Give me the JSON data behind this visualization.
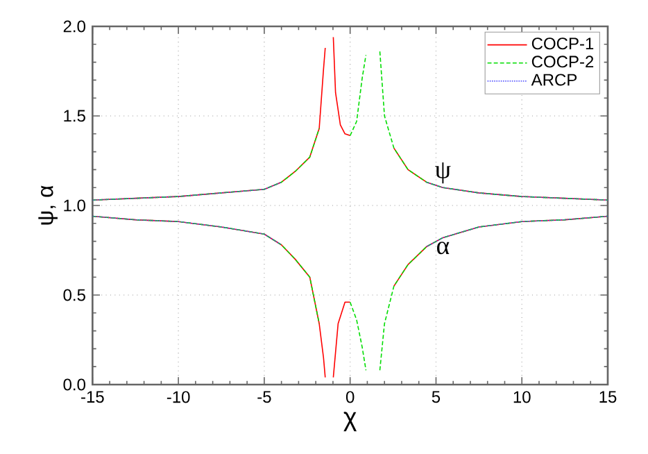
{
  "chart_data": {
    "type": "line",
    "xlabel": "χ",
    "ylabel": "ψ, α",
    "xlim": [
      -15,
      15
    ],
    "ylim": [
      0,
      2
    ],
    "xticks": [
      -15,
      -10,
      -5,
      0,
      5,
      10,
      15
    ],
    "yticks": [
      {
        "value": 0,
        "label": "0.0"
      },
      {
        "value": 0.5,
        "label": "0.5"
      },
      {
        "value": 1,
        "label": "1.0"
      },
      {
        "value": 1.5,
        "label": "1.5"
      },
      {
        "value": 2,
        "label": "2.0"
      }
    ],
    "grid": true,
    "legend": "top right",
    "marker": "none",
    "annotations": [
      {
        "text": "ψ",
        "x": 5.4,
        "y": 1.1
      },
      {
        "text": "α",
        "x": 5.4,
        "y": 0.82
      }
    ],
    "series": [
      {
        "name": "COCP-1",
        "color": "#ff0000",
        "line_style": "solid",
        "x": [
          -15,
          -12.5,
          -10,
          -7.5,
          -5,
          -4,
          -3.2,
          -2.35,
          -1.8,
          -1.55,
          -1.45,
          null,
          -0.98,
          -0.85,
          -0.57,
          -0.3,
          0,
          null,
          2.55,
          3.37,
          4.45,
          5.4,
          7.5,
          10,
          12.5,
          15,
          null,
          -15,
          -12.5,
          -10,
          -7.5,
          -5,
          -4,
          -3.2,
          -2.35,
          -1.8,
          -1.55,
          -1.45,
          null,
          -0.98,
          -0.7,
          -0.3,
          0,
          null,
          2.55,
          3.37,
          4.45,
          5.4,
          7.5,
          10,
          12.5,
          15
        ],
        "values": [
          1.03,
          1.04,
          1.05,
          1.07,
          1.09,
          1.13,
          1.19,
          1.27,
          1.43,
          1.76,
          1.88,
          null,
          1.94,
          1.63,
          1.45,
          1.4,
          1.39,
          null,
          1.32,
          1.2,
          1.13,
          1.1,
          1.07,
          1.05,
          1.04,
          1.03,
          null,
          0.94,
          0.92,
          0.91,
          0.88,
          0.84,
          0.78,
          0.7,
          0.6,
          0.34,
          0.15,
          0.04,
          null,
          0.04,
          0.34,
          0.46,
          0.46,
          null,
          0.55,
          0.67,
          0.77,
          0.82,
          0.88,
          0.91,
          0.92,
          0.94
        ]
      },
      {
        "name": "COCP-2",
        "color": "#00dd00",
        "line_style": "dashed",
        "x": [
          -15,
          -12.5,
          -10,
          -7.5,
          -5,
          -4,
          -3.2,
          -2.35,
          -1.8,
          null,
          0,
          0.38,
          0.7,
          0.92,
          null,
          1.73,
          2.0,
          2.55,
          3.37,
          4.45,
          5.4,
          7.5,
          10,
          12.5,
          15,
          null,
          -15,
          -12.5,
          -10,
          -7.5,
          -5,
          -4,
          -3.2,
          -2.35,
          -1.8,
          null,
          0,
          0.38,
          0.7,
          0.92,
          null,
          1.73,
          2.0,
          2.55,
          3.37,
          4.45,
          5.4,
          7.5,
          10,
          12.5,
          15
        ],
        "values": [
          1.03,
          1.04,
          1.05,
          1.07,
          1.09,
          1.13,
          1.19,
          1.27,
          1.43,
          null,
          1.39,
          1.47,
          1.71,
          1.84,
          null,
          1.86,
          1.5,
          1.32,
          1.2,
          1.13,
          1.1,
          1.07,
          1.05,
          1.04,
          1.03,
          null,
          0.94,
          0.92,
          0.91,
          0.88,
          0.84,
          0.78,
          0.7,
          0.6,
          0.34,
          null,
          0.46,
          0.36,
          0.21,
          0.08,
          null,
          0.08,
          0.34,
          0.55,
          0.67,
          0.77,
          0.82,
          0.88,
          0.91,
          0.92,
          0.94
        ]
      },
      {
        "name": "ARCP",
        "color": "#4444ff",
        "line_style": "dotted",
        "x": [
          -15,
          -12.5,
          -10,
          -7.5,
          -5,
          -4,
          null,
          4.45,
          5.4,
          7.5,
          10,
          12.5,
          15,
          null,
          -15,
          -12.5,
          -10,
          -7.5,
          -5,
          -4,
          null,
          4.45,
          5.4,
          7.5,
          10,
          12.5,
          15
        ],
        "values": [
          1.03,
          1.04,
          1.05,
          1.07,
          1.09,
          1.13,
          null,
          1.13,
          1.1,
          1.07,
          1.05,
          1.04,
          1.03,
          null,
          0.94,
          0.92,
          0.91,
          0.88,
          0.84,
          0.78,
          null,
          0.77,
          0.82,
          0.88,
          0.91,
          0.92,
          0.94
        ]
      }
    ]
  }
}
